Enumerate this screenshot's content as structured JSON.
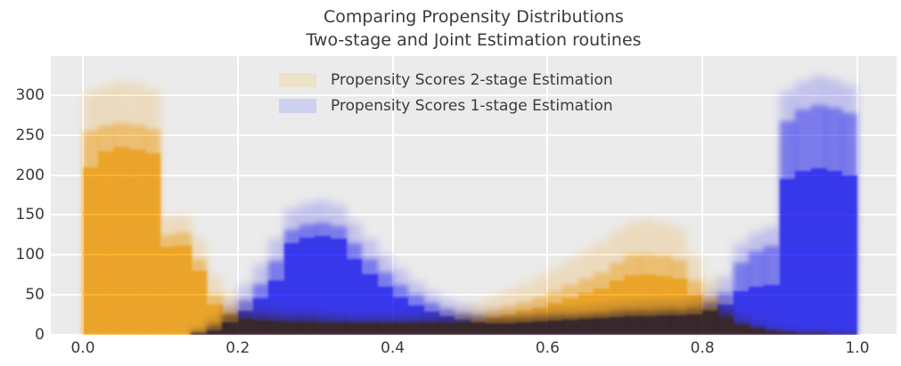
{
  "title": {
    "line1": "Comparing Propensity Distributions",
    "line2": "Two-stage and Joint Estimation routines"
  },
  "legend": {
    "items": [
      {
        "label": "Propensity Scores 2-stage Estimation",
        "swatch": "#ece2c8"
      },
      {
        "label": "Propensity Scores 1-stage Estimation",
        "swatch": "#cdd0ef"
      }
    ]
  },
  "axes": {
    "x_tick_labels": [
      "0.0",
      "0.2",
      "0.4",
      "0.6",
      "0.8",
      "1.0"
    ],
    "x_tick_values": [
      0.0,
      0.2,
      0.4,
      0.6,
      0.8,
      1.0
    ],
    "y_tick_labels": [
      "0",
      "50",
      "100",
      "150",
      "200",
      "250",
      "300"
    ],
    "y_tick_values": [
      0,
      50,
      100,
      150,
      200,
      250,
      300
    ]
  },
  "colors": {
    "plot_background": "#ebebeb",
    "gridline": "#ffffff",
    "text": "#3a3a3a",
    "orange_core": "#ffb029",
    "blue_core": "#3737ff"
  },
  "chart_data": {
    "type": "bar",
    "subtype": "overlaid-ensemble-histograms",
    "title": "Comparing Propensity Distributions\nTwo-stage and Joint Estimation routines",
    "xlabel": "",
    "ylabel": "",
    "xlim": [
      -0.04,
      1.05
    ],
    "ylim": [
      0,
      349
    ],
    "grid": true,
    "legend_position": "upper center",
    "bin_start": 0.0,
    "bin_width": 0.02,
    "series": [
      {
        "name": "Propensity Scores 2-stage Estimation",
        "color": "#ffb029",
        "core": [
          210,
          230,
          235,
          232,
          228,
          110,
          112,
          80,
          38,
          26,
          20,
          18,
          17,
          16,
          16,
          15,
          15,
          14,
          14,
          14,
          14,
          14,
          15,
          15,
          16,
          18,
          22,
          26,
          30,
          34,
          40,
          46,
          52,
          58,
          68,
          75,
          76,
          74,
          70,
          50,
          34,
          22,
          12,
          8,
          5,
          3,
          2,
          2,
          1,
          1
        ],
        "mid": [
          255,
          262,
          265,
          263,
          258,
          125,
          128,
          95,
          50,
          34,
          26,
          24,
          22,
          21,
          21,
          20,
          19,
          18,
          18,
          18,
          18,
          19,
          20,
          21,
          23,
          26,
          31,
          36,
          41,
          47,
          55,
          62,
          70,
          78,
          90,
          100,
          102,
          99,
          94,
          68,
          47,
          31,
          17,
          11,
          7,
          4,
          3,
          3,
          2,
          2
        ],
        "light": [
          305,
          312,
          318,
          315,
          308,
          148,
          150,
          120,
          75,
          52,
          38,
          35,
          32,
          30,
          30,
          28,
          27,
          26,
          26,
          26,
          26,
          27,
          29,
          31,
          34,
          40,
          48,
          56,
          64,
          72,
          84,
          95,
          106,
          116,
          130,
          142,
          145,
          141,
          134,
          100,
          70,
          46,
          26,
          17,
          11,
          7,
          5,
          4,
          3,
          3
        ]
      },
      {
        "name": "Propensity Scores 1-stage Estimation",
        "color": "#3737ff",
        "core": [
          0,
          0,
          0,
          0,
          0,
          0,
          0,
          2,
          6,
          16,
          30,
          46,
          68,
          115,
          122,
          124,
          120,
          95,
          76,
          60,
          47,
          37,
          29,
          23,
          19,
          16,
          15,
          15,
          16,
          17,
          18,
          19,
          20,
          21,
          22,
          23,
          23,
          24,
          24,
          26,
          30,
          38,
          55,
          60,
          62,
          195,
          205,
          208,
          205,
          200
        ],
        "mid": [
          0,
          0,
          0,
          0,
          0,
          0,
          0,
          4,
          12,
          26,
          44,
          64,
          92,
          132,
          138,
          140,
          136,
          115,
          95,
          78,
          62,
          50,
          40,
          32,
          27,
          23,
          21,
          21,
          22,
          23,
          24,
          25,
          26,
          27,
          29,
          30,
          30,
          31,
          31,
          34,
          40,
          52,
          90,
          105,
          112,
          268,
          282,
          288,
          284,
          278
        ],
        "light": [
          0,
          0,
          0,
          0,
          0,
          0,
          0,
          8,
          20,
          40,
          62,
          88,
          120,
          158,
          165,
          168,
          163,
          140,
          120,
          100,
          82,
          67,
          55,
          45,
          38,
          32,
          30,
          29,
          30,
          32,
          33,
          34,
          35,
          37,
          39,
          40,
          41,
          42,
          42,
          46,
          55,
          72,
          115,
          128,
          135,
          305,
          318,
          325,
          320,
          312
        ]
      }
    ]
  }
}
